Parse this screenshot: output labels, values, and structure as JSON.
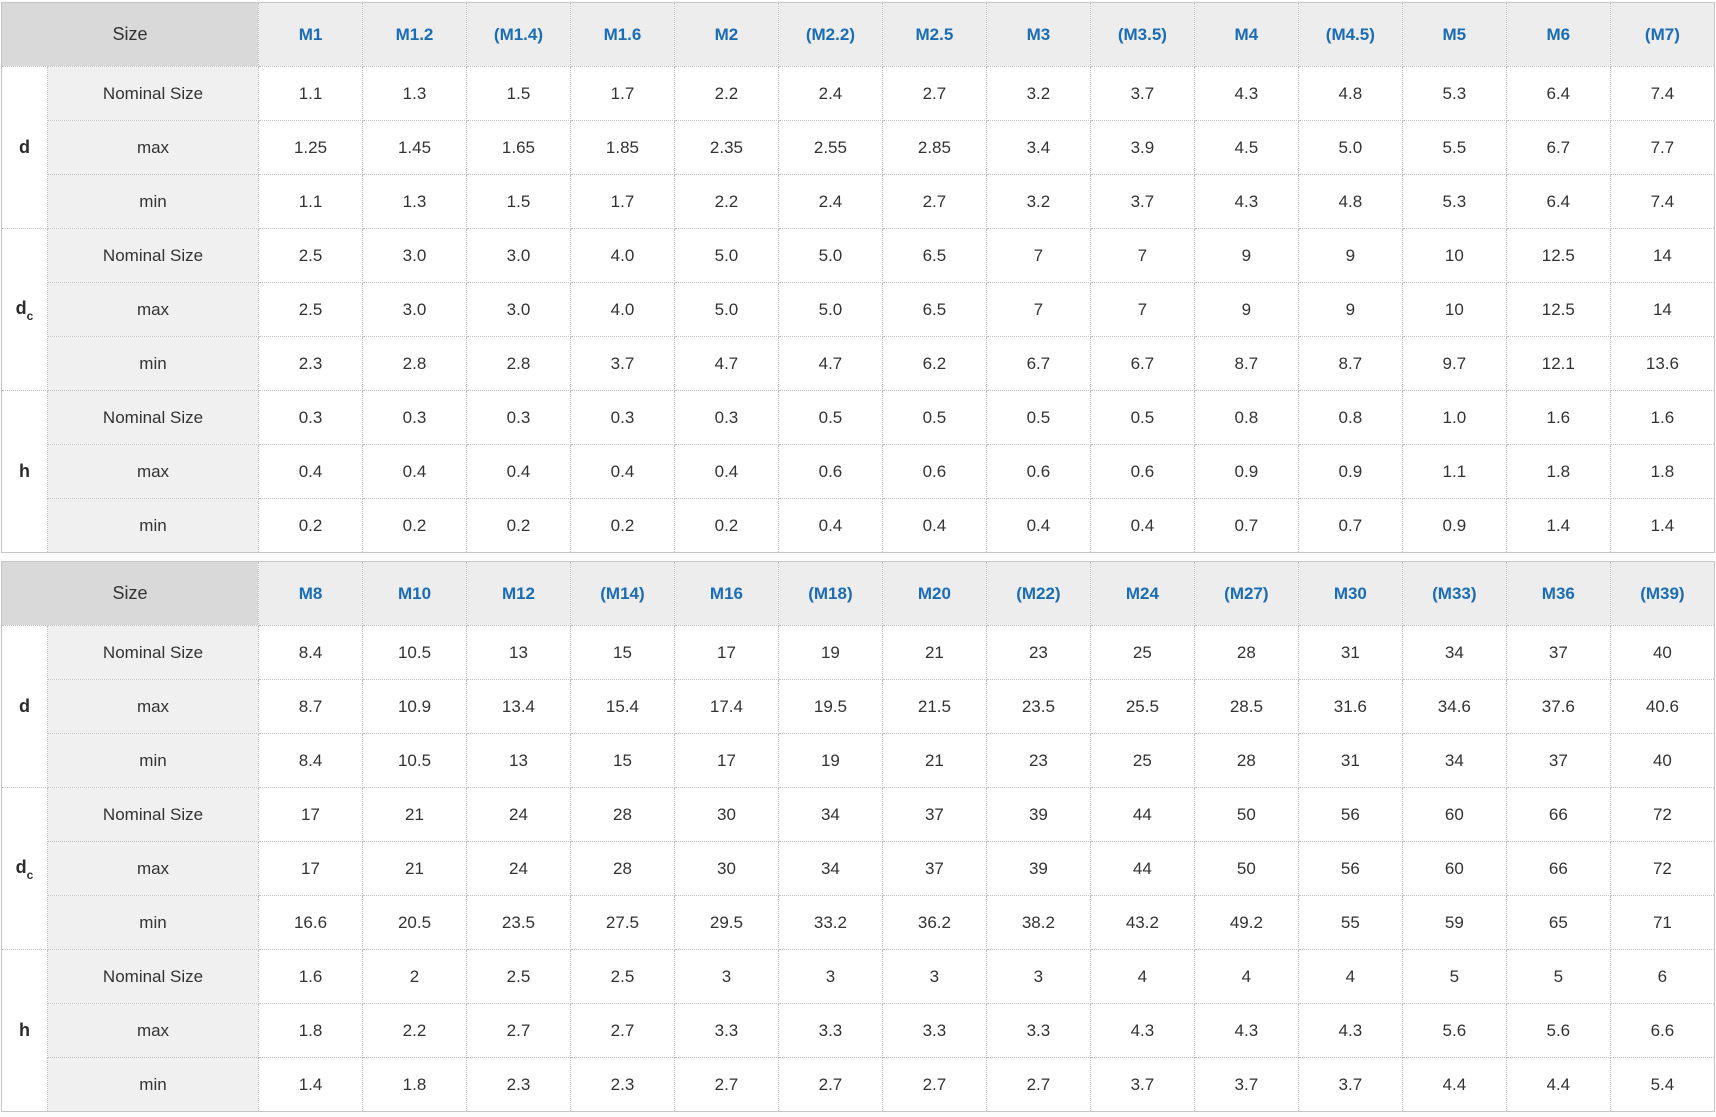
{
  "page": {
    "description": "Flat washer dimensional specification tables (d, dc, h) for metric thread sizes",
    "background": "#fcfcfc"
  },
  "colors": {
    "column_header_text": "#1a6db4",
    "size_header_bg": "#d9d9d9",
    "column_header_bg": "#ededee",
    "row_label_bg": "#f0f0f1",
    "value_cell_bg": "#ffffff",
    "body_text": "#333333",
    "outer_border": "#c6c6c6",
    "inner_border_dotted": "#c2c2c2"
  },
  "tables": [
    {
      "size_label": "Size",
      "columns": [
        "M1",
        "M1.2",
        "(M1.4)",
        "M1.6",
        "M2",
        "(M2.2)",
        "M2.5",
        "M3",
        "(M3.5)",
        "M4",
        "(M4.5)",
        "M5",
        "M6",
        "(M7)"
      ],
      "row_groups": [
        {
          "label_base": "d",
          "label_sub": "",
          "rows": [
            {
              "label": "Nominal Size",
              "values": [
                "1.1",
                "1.3",
                "1.5",
                "1.7",
                "2.2",
                "2.4",
                "2.7",
                "3.2",
                "3.7",
                "4.3",
                "4.8",
                "5.3",
                "6.4",
                "7.4"
              ]
            },
            {
              "label": "max",
              "values": [
                "1.25",
                "1.45",
                "1.65",
                "1.85",
                "2.35",
                "2.55",
                "2.85",
                "3.4",
                "3.9",
                "4.5",
                "5.0",
                "5.5",
                "6.7",
                "7.7"
              ]
            },
            {
              "label": "min",
              "values": [
                "1.1",
                "1.3",
                "1.5",
                "1.7",
                "2.2",
                "2.4",
                "2.7",
                "3.2",
                "3.7",
                "4.3",
                "4.8",
                "5.3",
                "6.4",
                "7.4"
              ]
            }
          ]
        },
        {
          "label_base": "d",
          "label_sub": "c",
          "rows": [
            {
              "label": "Nominal Size",
              "values": [
                "2.5",
                "3.0",
                "3.0",
                "4.0",
                "5.0",
                "5.0",
                "6.5",
                "7",
                "7",
                "9",
                "9",
                "10",
                "12.5",
                "14"
              ]
            },
            {
              "label": "max",
              "values": [
                "2.5",
                "3.0",
                "3.0",
                "4.0",
                "5.0",
                "5.0",
                "6.5",
                "7",
                "7",
                "9",
                "9",
                "10",
                "12.5",
                "14"
              ]
            },
            {
              "label": "min",
              "values": [
                "2.3",
                "2.8",
                "2.8",
                "3.7",
                "4.7",
                "4.7",
                "6.2",
                "6.7",
                "6.7",
                "8.7",
                "8.7",
                "9.7",
                "12.1",
                "13.6"
              ]
            }
          ]
        },
        {
          "label_base": "h",
          "label_sub": "",
          "rows": [
            {
              "label": "Nominal Size",
              "values": [
                "0.3",
                "0.3",
                "0.3",
                "0.3",
                "0.3",
                "0.5",
                "0.5",
                "0.5",
                "0.5",
                "0.8",
                "0.8",
                "1.0",
                "1.6",
                "1.6"
              ]
            },
            {
              "label": "max",
              "values": [
                "0.4",
                "0.4",
                "0.4",
                "0.4",
                "0.4",
                "0.6",
                "0.6",
                "0.6",
                "0.6",
                "0.9",
                "0.9",
                "1.1",
                "1.8",
                "1.8"
              ]
            },
            {
              "label": "min",
              "values": [
                "0.2",
                "0.2",
                "0.2",
                "0.2",
                "0.2",
                "0.4",
                "0.4",
                "0.4",
                "0.4",
                "0.7",
                "0.7",
                "0.9",
                "1.4",
                "1.4"
              ]
            }
          ]
        }
      ]
    },
    {
      "size_label": "Size",
      "columns": [
        "M8",
        "M10",
        "M12",
        "(M14)",
        "M16",
        "(M18)",
        "M20",
        "(M22)",
        "M24",
        "(M27)",
        "M30",
        "(M33)",
        "M36",
        "(M39)"
      ],
      "row_groups": [
        {
          "label_base": "d",
          "label_sub": "",
          "rows": [
            {
              "label": "Nominal Size",
              "values": [
                "8.4",
                "10.5",
                "13",
                "15",
                "17",
                "19",
                "21",
                "23",
                "25",
                "28",
                "31",
                "34",
                "37",
                "40"
              ]
            },
            {
              "label": "max",
              "values": [
                "8.7",
                "10.9",
                "13.4",
                "15.4",
                "17.4",
                "19.5",
                "21.5",
                "23.5",
                "25.5",
                "28.5",
                "31.6",
                "34.6",
                "37.6",
                "40.6"
              ]
            },
            {
              "label": "min",
              "values": [
                "8.4",
                "10.5",
                "13",
                "15",
                "17",
                "19",
                "21",
                "23",
                "25",
                "28",
                "31",
                "34",
                "37",
                "40"
              ]
            }
          ]
        },
        {
          "label_base": "d",
          "label_sub": "c",
          "rows": [
            {
              "label": "Nominal Size",
              "values": [
                "17",
                "21",
                "24",
                "28",
                "30",
                "34",
                "37",
                "39",
                "44",
                "50",
                "56",
                "60",
                "66",
                "72"
              ]
            },
            {
              "label": "max",
              "values": [
                "17",
                "21",
                "24",
                "28",
                "30",
                "34",
                "37",
                "39",
                "44",
                "50",
                "56",
                "60",
                "66",
                "72"
              ]
            },
            {
              "label": "min",
              "values": [
                "16.6",
                "20.5",
                "23.5",
                "27.5",
                "29.5",
                "33.2",
                "36.2",
                "38.2",
                "43.2",
                "49.2",
                "55",
                "59",
                "65",
                "71"
              ]
            }
          ]
        },
        {
          "label_base": "h",
          "label_sub": "",
          "rows": [
            {
              "label": "Nominal Size",
              "values": [
                "1.6",
                "2",
                "2.5",
                "2.5",
                "3",
                "3",
                "3",
                "3",
                "4",
                "4",
                "4",
                "5",
                "5",
                "6"
              ]
            },
            {
              "label": "max",
              "values": [
                "1.8",
                "2.2",
                "2.7",
                "2.7",
                "3.3",
                "3.3",
                "3.3",
                "3.3",
                "4.3",
                "4.3",
                "4.3",
                "5.6",
                "5.6",
                "6.6"
              ]
            },
            {
              "label": "min",
              "values": [
                "1.4",
                "1.8",
                "2.3",
                "2.3",
                "2.7",
                "2.7",
                "2.7",
                "2.7",
                "3.7",
                "3.7",
                "3.7",
                "4.4",
                "4.4",
                "5.4"
              ]
            }
          ]
        }
      ]
    }
  ]
}
